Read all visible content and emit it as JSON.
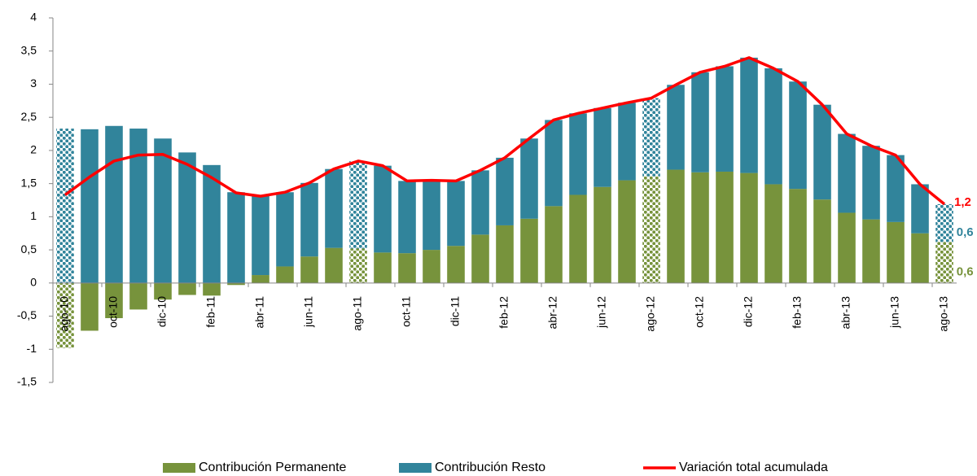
{
  "chart_data": {
    "type": "bar-line",
    "categories": [
      "ago-10",
      null,
      "oct-10",
      null,
      "dic-10",
      null,
      "feb-11",
      null,
      "abr-11",
      null,
      "jun-11",
      null,
      "ago-11",
      null,
      "oct-11",
      null,
      "dic-11",
      null,
      "feb-12",
      null,
      "abr-12",
      null,
      "jun-12",
      null,
      "ago-12",
      null,
      "oct-12",
      null,
      "dic-12",
      null,
      "feb-13",
      null,
      "abr-13",
      null,
      "jun-13",
      null,
      "ago-13"
    ],
    "series": [
      {
        "name": "Contribución Permanente",
        "color": "#77933c",
        "kind": "bar",
        "values": [
          -0.98,
          -0.72,
          -0.53,
          -0.4,
          -0.25,
          -0.18,
          -0.19,
          -0.03,
          0.12,
          0.25,
          0.4,
          0.53,
          0.52,
          0.46,
          0.45,
          0.5,
          0.56,
          0.73,
          0.87,
          0.97,
          1.16,
          1.33,
          1.45,
          1.55,
          1.61,
          1.71,
          1.67,
          1.68,
          1.66,
          1.49,
          1.42,
          1.26,
          1.06,
          0.96,
          0.92,
          0.75,
          0.62
        ],
        "value_labels": [
          null,
          null,
          null,
          null,
          null,
          null,
          null,
          null,
          null,
          null,
          null,
          null,
          null,
          null,
          null,
          null,
          null,
          null,
          null,
          null,
          null,
          null,
          null,
          null,
          null,
          null,
          null,
          null,
          null,
          null,
          null,
          null,
          null,
          null,
          null,
          null,
          "0,6"
        ]
      },
      {
        "name": "Contribución  Resto",
        "color": "#31849b",
        "kind": "bar",
        "values": [
          2.33,
          2.32,
          2.37,
          2.33,
          2.18,
          1.97,
          1.78,
          1.37,
          1.2,
          1.12,
          1.11,
          1.19,
          1.32,
          1.31,
          1.09,
          1.05,
          0.98,
          0.97,
          1.02,
          1.21,
          1.3,
          1.23,
          1.19,
          1.17,
          1.18,
          1.28,
          1.51,
          1.59,
          1.74,
          1.75,
          1.62,
          1.43,
          1.19,
          1.11,
          1.01,
          0.74,
          0.57
        ],
        "value_labels": [
          null,
          null,
          null,
          null,
          null,
          null,
          null,
          null,
          null,
          null,
          null,
          null,
          null,
          null,
          null,
          null,
          null,
          null,
          null,
          null,
          null,
          null,
          null,
          null,
          null,
          null,
          null,
          null,
          null,
          null,
          null,
          null,
          null,
          null,
          null,
          null,
          "0,6"
        ]
      },
      {
        "name": "Variación total acumulada",
        "color": "#ff0000",
        "kind": "line",
        "values": [
          1.33,
          1.6,
          1.84,
          1.93,
          1.94,
          1.79,
          1.59,
          1.36,
          1.31,
          1.37,
          1.51,
          1.72,
          1.84,
          1.77,
          1.54,
          1.55,
          1.54,
          1.7,
          1.89,
          2.18,
          2.46,
          2.56,
          2.64,
          2.72,
          2.79,
          2.99,
          3.18,
          3.27,
          3.4,
          3.24,
          3.04,
          2.69,
          2.25,
          2.07,
          1.93,
          1.49,
          1.19
        ],
        "value_labels": [
          null,
          null,
          null,
          null,
          null,
          null,
          null,
          null,
          null,
          null,
          null,
          null,
          null,
          null,
          null,
          null,
          null,
          null,
          null,
          null,
          null,
          null,
          null,
          null,
          null,
          null,
          null,
          null,
          null,
          null,
          null,
          null,
          null,
          null,
          null,
          null,
          "1,2"
        ]
      }
    ],
    "patterned_categories": [
      0,
      12,
      24,
      36
    ],
    "ylim": [
      -1.5,
      4
    ],
    "yticks": [
      {
        "value": -1.5,
        "label": "-1,5"
      },
      -1,
      {
        "value": -0.5,
        "label": "-0,5"
      },
      0,
      {
        "value": 0.5,
        "label": "0,5"
      },
      1,
      {
        "value": 1.5,
        "label": "1,5"
      },
      2,
      {
        "value": 2.5,
        "label": "2,5"
      },
      3,
      {
        "value": 3.5,
        "label": "3,5"
      },
      4
    ],
    "grid": false
  }
}
